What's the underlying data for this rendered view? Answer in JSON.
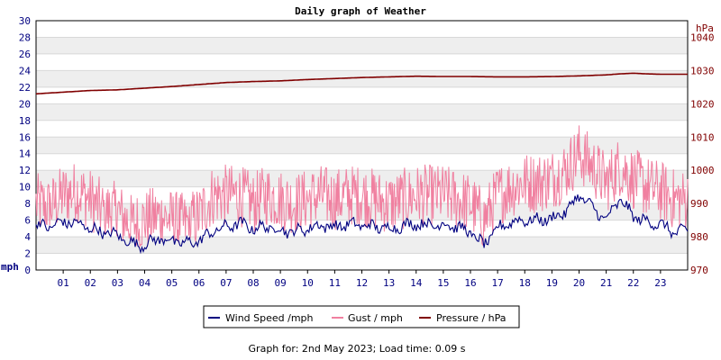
{
  "chart_data": {
    "type": "line",
    "title": "Daily graph of Weather",
    "x": {
      "tick_labels": [
        "01",
        "02",
        "03",
        "04",
        "05",
        "06",
        "07",
        "08",
        "09",
        "10",
        "11",
        "12",
        "13",
        "14",
        "15",
        "16",
        "17",
        "18",
        "19",
        "20",
        "21",
        "22",
        "23"
      ],
      "range_hours": [
        0,
        24
      ]
    },
    "y_left": {
      "unit_label": "mph",
      "ticks": [
        0,
        2,
        4,
        6,
        8,
        10,
        12,
        14,
        16,
        18,
        20,
        22,
        24,
        26,
        28,
        30
      ],
      "range": [
        0,
        30
      ]
    },
    "y_right": {
      "unit_label": "hPa",
      "ticks": [
        970,
        980,
        990,
        1000,
        1010,
        1020,
        1030,
        1040
      ],
      "range": [
        970,
        1045
      ]
    },
    "grid": "horizontal alternating bands",
    "series": [
      {
        "name": "Wind Speed /mph",
        "color": "#000080",
        "axis": "left",
        "hours": [
          0,
          0.5,
          1,
          1.5,
          2,
          2.5,
          3,
          3.5,
          4,
          4.5,
          5,
          5.5,
          6,
          6.5,
          7,
          7.5,
          8,
          8.5,
          9,
          9.5,
          10,
          10.5,
          11,
          11.5,
          12,
          12.5,
          13,
          13.5,
          14,
          14.5,
          15,
          15.5,
          16,
          16.5,
          17,
          17.5,
          18,
          18.5,
          19,
          19.5,
          20,
          20.5,
          21,
          21.5,
          22,
          22.5,
          23,
          23.5,
          24
        ],
        "values": [
          5.5,
          5.2,
          5.8,
          5.6,
          5.0,
          4.5,
          4.2,
          3.2,
          3.0,
          3.8,
          3.5,
          3.2,
          3.5,
          4.6,
          5.2,
          5.6,
          5.0,
          5.2,
          4.8,
          4.6,
          5.0,
          5.4,
          5.2,
          5.5,
          5.4,
          5.2,
          5.0,
          5.3,
          5.6,
          5.4,
          5.5,
          5.2,
          4.5,
          3.0,
          5.0,
          5.8,
          6.0,
          6.0,
          6.2,
          7.0,
          9.0,
          7.5,
          6.0,
          8.5,
          6.5,
          5.8,
          5.5,
          4.5,
          4.8
        ]
      },
      {
        "name": "Gust / mph",
        "color": "#f080a0",
        "axis": "left",
        "hours": [
          0,
          0.5,
          1,
          1.5,
          2,
          2.5,
          3,
          3.5,
          4,
          4.5,
          5,
          5.5,
          6,
          6.5,
          7,
          7.5,
          8,
          8.5,
          9,
          9.5,
          10,
          10.5,
          11,
          11.5,
          12,
          12.5,
          13,
          13.5,
          14,
          14.5,
          15,
          15.5,
          16,
          16.5,
          17,
          17.5,
          18,
          18.5,
          19,
          19.5,
          20,
          20.5,
          21,
          21.5,
          22,
          22.5,
          23,
          23.5,
          24
        ],
        "values": [
          8.0,
          7.5,
          9.0,
          9.5,
          8.5,
          7.0,
          7.0,
          5.5,
          6.0,
          6.5,
          6.0,
          5.5,
          6.5,
          9.0,
          9.0,
          9.0,
          8.0,
          9.0,
          8.5,
          8.0,
          8.5,
          9.0,
          8.5,
          9.0,
          9.0,
          8.5,
          8.0,
          8.5,
          9.0,
          9.0,
          9.0,
          8.5,
          8.0,
          6.0,
          9.0,
          10.0,
          10.5,
          10.5,
          11.0,
          12.0,
          14.0,
          12.5,
          10.5,
          12.5,
          11.0,
          10.0,
          9.5,
          8.5,
          8.5
        ]
      },
      {
        "name": "Pressure / hPa",
        "color": "#800000",
        "axis": "right",
        "hours": [
          0,
          1,
          2,
          3,
          4,
          5,
          6,
          7,
          8,
          9,
          10,
          11,
          12,
          13,
          14,
          15,
          16,
          17,
          18,
          19,
          20,
          21,
          21.5,
          22,
          22.5,
          23,
          24
        ],
        "values": [
          1023,
          1023.5,
          1024,
          1024.2,
          1024.7,
          1025.2,
          1025.8,
          1026.4,
          1026.7,
          1026.9,
          1027.3,
          1027.6,
          1027.9,
          1028.1,
          1028.3,
          1028.2,
          1028.2,
          1028.1,
          1028.1,
          1028.2,
          1028.4,
          1028.7,
          1029.0,
          1029.2,
          1029.0,
          1028.9,
          1028.9
        ]
      }
    ],
    "legend": {
      "placement": "bottom-center",
      "items": [
        "Wind Speed /mph",
        "Gust / mph",
        "Pressure / hPa"
      ]
    },
    "footer": "Graph for: 2nd May 2023; Load time: 0.09 s"
  }
}
